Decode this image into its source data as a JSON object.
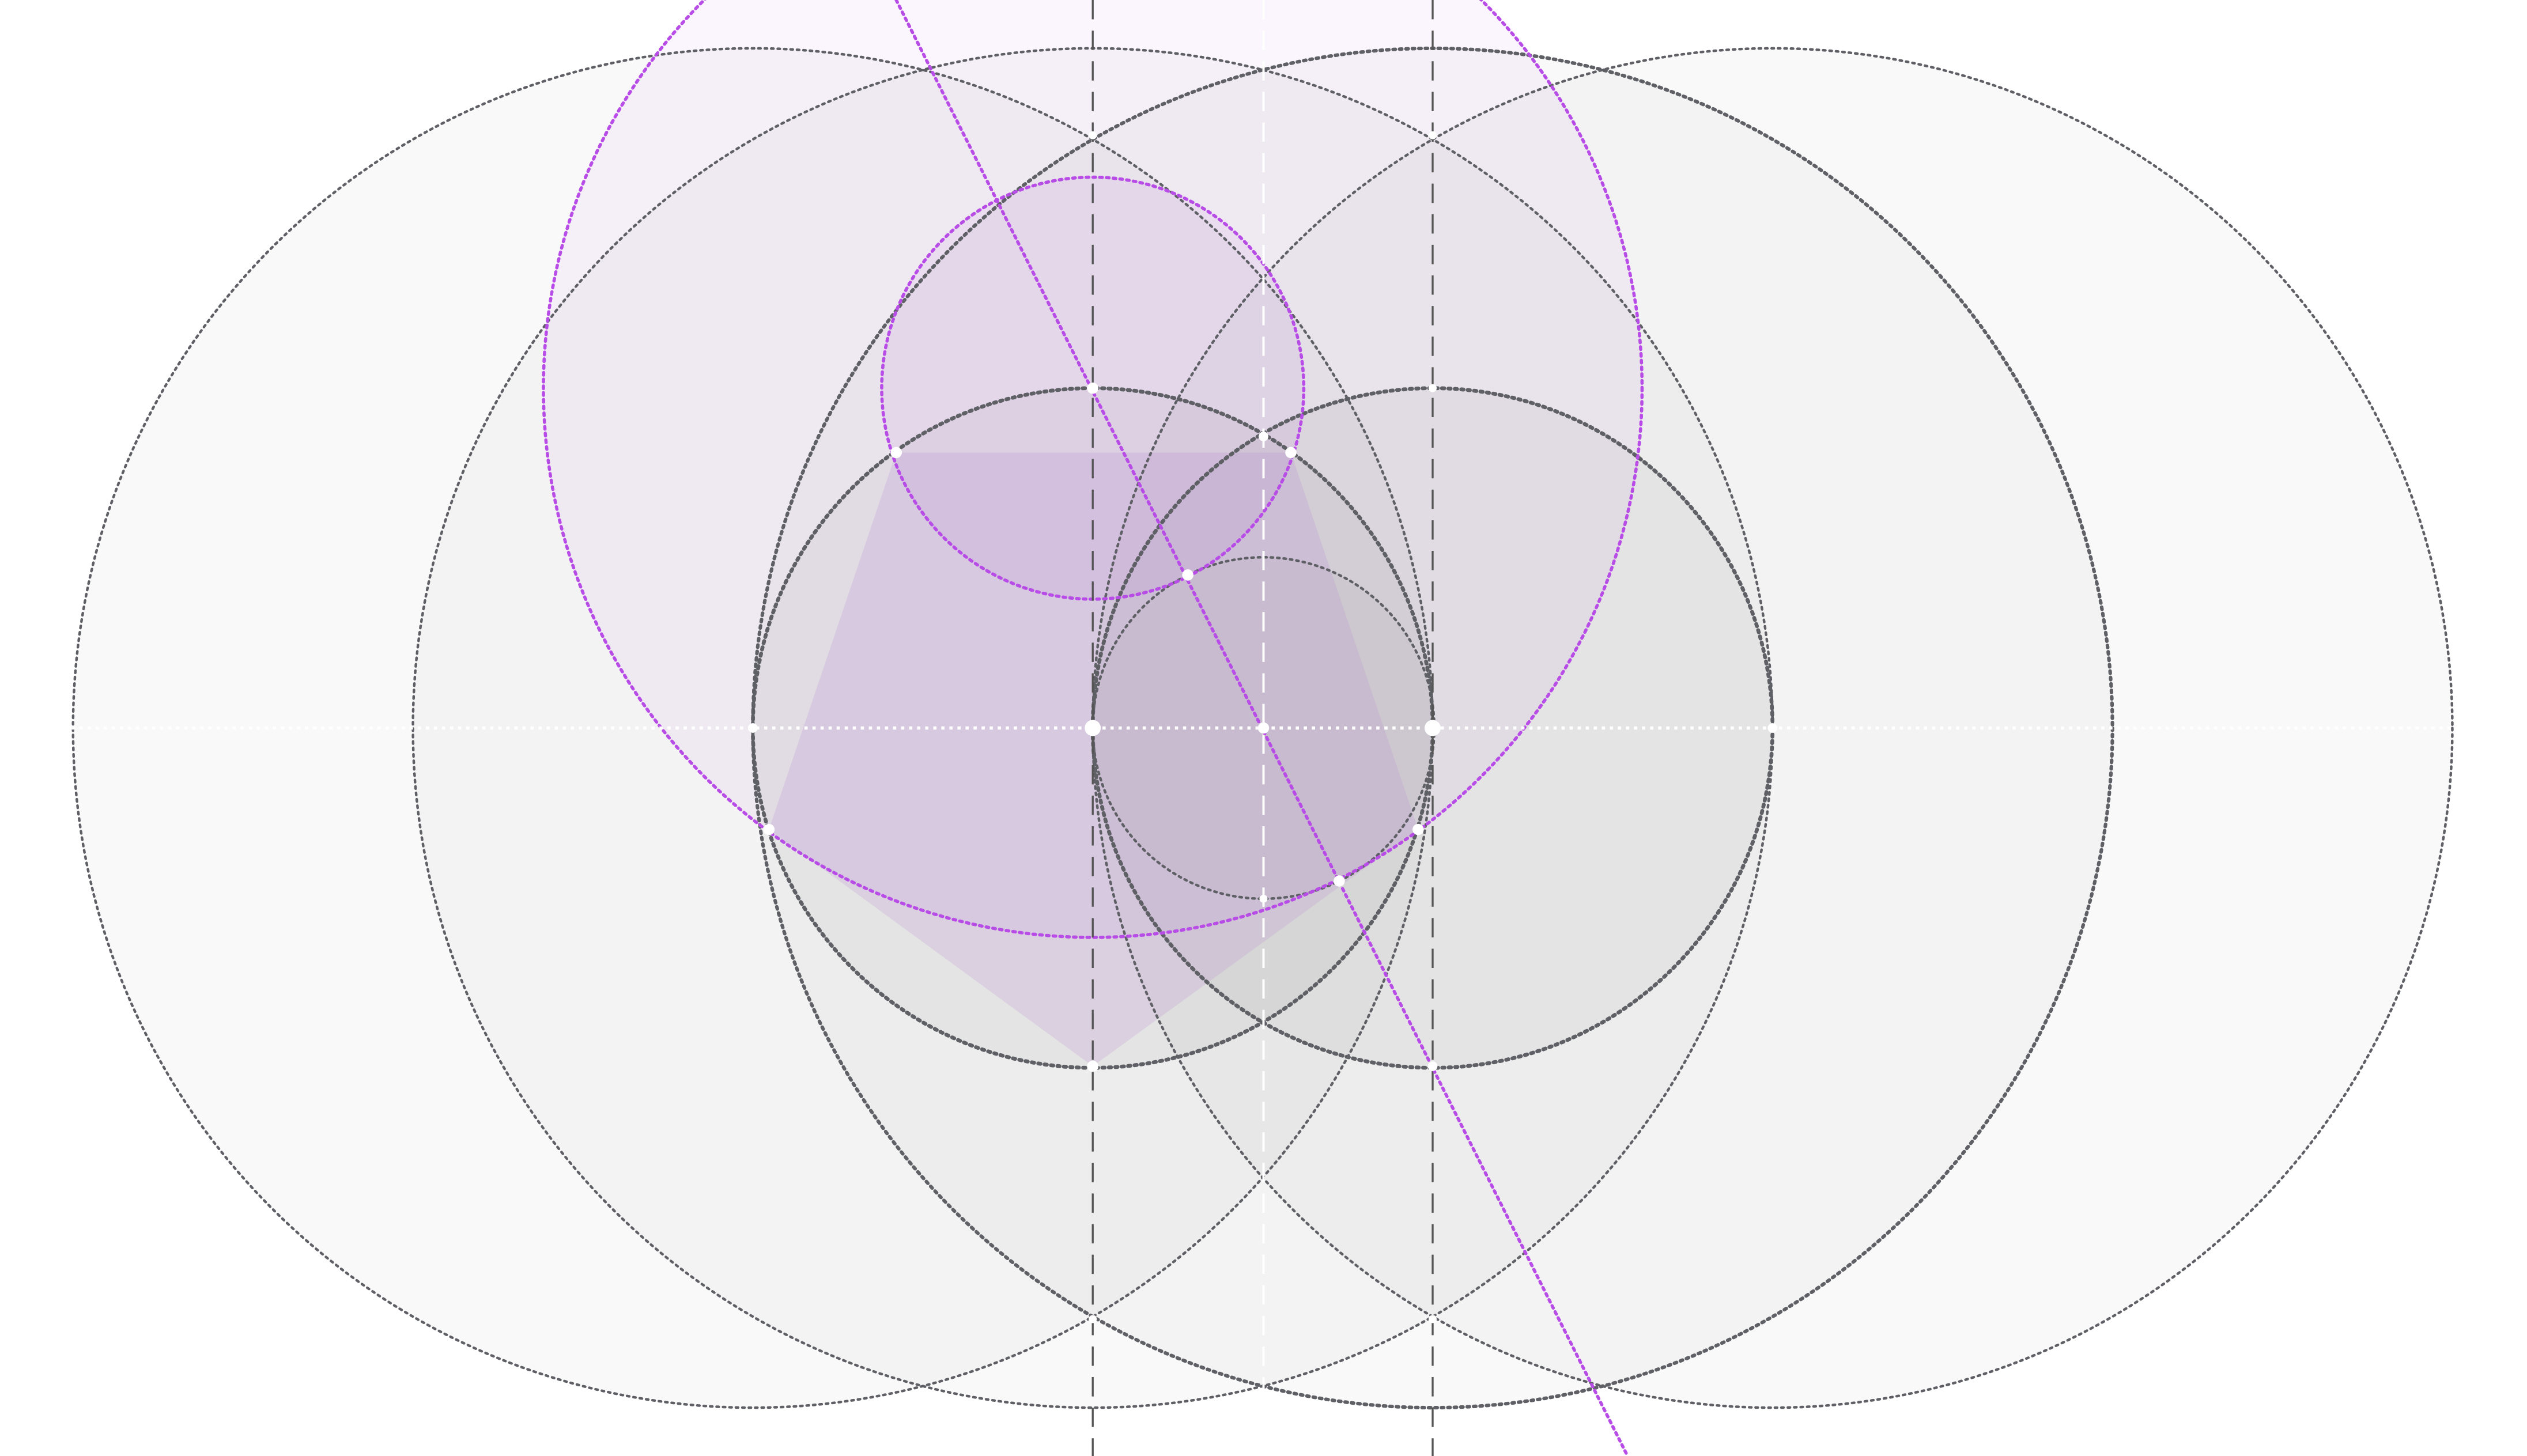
{
  "diagram": {
    "kind": "pentagon-compass-construction",
    "background": "#ffffff",
    "palette": {
      "gray_stroke": "#5f5f66",
      "gray_fill": "#000000",
      "purple_stroke": "#b84ce6",
      "purple_fill": "#a035d2",
      "pentagon_fill": "#b68ad0",
      "axis_dashes": "#ffffff",
      "guide_dashes": "#555555",
      "point_fill": "#ffffff"
    },
    "elements": {
      "outer_circles": 4,
      "base_circles": 2,
      "inner_circle": 1,
      "purple_circles": 2,
      "purple_bisector_line": 1,
      "vertical_guides": 3,
      "horizontal_axis": 1,
      "pentagon": 1,
      "marked_points": 22
    }
  }
}
